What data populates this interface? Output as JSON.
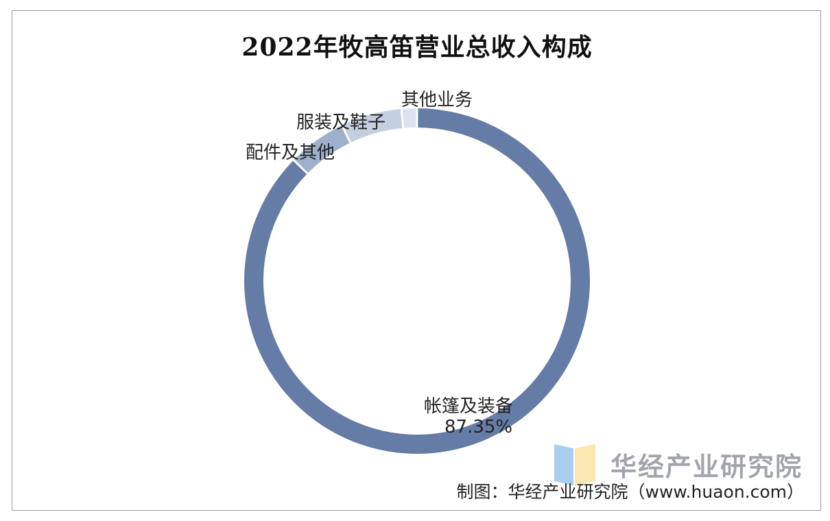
{
  "chart_data": {
    "type": "pie",
    "title": "2022年牧高笛营业总收入构成",
    "categories": [
      "帐篷及装备",
      "配件及其他",
      "服装及鞋子",
      "其他业务"
    ],
    "values": [
      87.35,
      5.5,
      5.7,
      1.45
    ],
    "value_labels": [
      "87.35%",
      "",
      "",
      ""
    ],
    "colors": [
      "#647ca6",
      "#9fb0cc",
      "#c3cede",
      "#dce3ee"
    ],
    "donut": true
  },
  "watermark": {
    "text": "华经产业研究院"
  },
  "source": {
    "text": "制图：华经产业研究院（www.huaon.com）"
  }
}
